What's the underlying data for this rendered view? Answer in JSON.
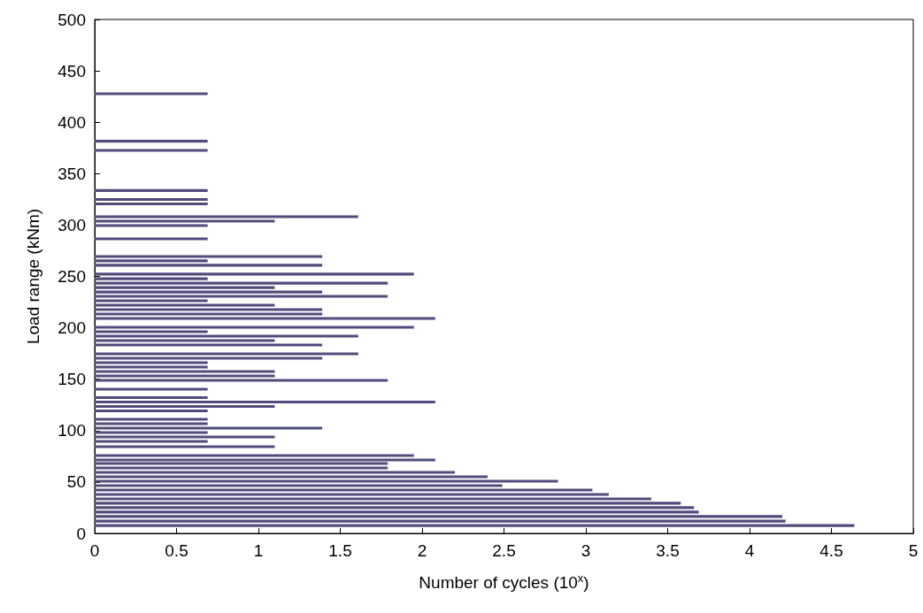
{
  "chart_data": {
    "type": "bar",
    "orientation": "horizontal",
    "xlabel": "Number of cycles (10$^{x}$)",
    "ylabel": "Load range (kNm)",
    "x": [
      427.7,
      381.5,
      372.6,
      333.6,
      324.9,
      320.6,
      308.1,
      303.8,
      299.5,
      286.6,
      269.4,
      265.1,
      260.8,
      252.2,
      247.8,
      243.5,
      239.2,
      234.9,
      230.6,
      226.3,
      222.0,
      217.7,
      213.4,
      209.1,
      200.5,
      196.2,
      191.9,
      187.6,
      183.3,
      174.7,
      170.4,
      166.1,
      161.8,
      157.5,
      153.2,
      148.9,
      140.3,
      132.1,
      127.8,
      123.5,
      119.2,
      111.0,
      106.7,
      102.4,
      98.1,
      93.8,
      89.5,
      84.3,
      75.7,
      71.4,
      68.0,
      63.7,
      59.4,
      55.1,
      50.8,
      46.5,
      42.2,
      37.9,
      33.6,
      29.3,
      25.0,
      20.7,
      16.4,
      12.0,
      7.7
    ],
    "values": [
      0.69,
      0.69,
      0.69,
      0.69,
      0.69,
      0.69,
      1.61,
      1.1,
      0.69,
      0.69,
      1.39,
      0.69,
      1.39,
      1.95,
      0.69,
      1.79,
      1.1,
      1.39,
      1.79,
      0.69,
      1.1,
      1.39,
      1.39,
      2.08,
      1.95,
      0.69,
      1.61,
      1.1,
      1.39,
      1.61,
      1.39,
      0.69,
      0.69,
      1.1,
      1.1,
      1.79,
      0.69,
      0.69,
      2.08,
      1.1,
      0.69,
      0.69,
      0.69,
      1.39,
      0.69,
      1.1,
      0.69,
      1.1,
      1.95,
      2.08,
      1.79,
      1.79,
      2.2,
      2.4,
      2.83,
      2.49,
      3.04,
      3.14,
      3.4,
      3.58,
      3.66,
      3.69,
      4.2,
      4.22,
      4.64
    ],
    "color": "#504c7b",
    "xlim": [
      0,
      5
    ],
    "xticks": [
      0,
      0.5,
      1,
      1.5,
      2,
      2.5,
      3,
      3.5,
      4,
      4.5,
      5
    ],
    "ylim": [
      0,
      500
    ],
    "yticks": [
      0,
      50,
      100,
      150,
      200,
      250,
      300,
      350,
      400,
      450,
      500
    ],
    "grid": false
  }
}
